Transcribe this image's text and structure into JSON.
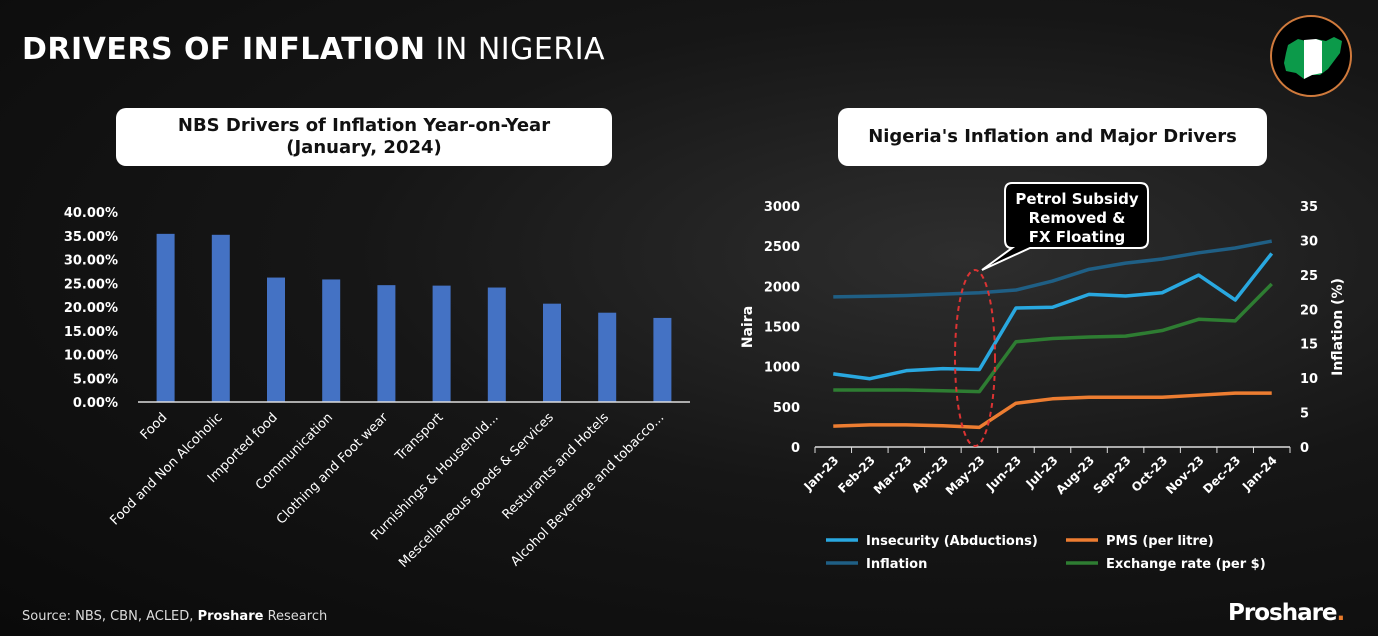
{
  "header": {
    "title_bold": "DRIVERS OF INFLATION",
    "title_rest": "IN NIGERIA"
  },
  "colors": {
    "bar": "#4472c4",
    "insecurity": "#29a8e0",
    "inflation": "#1f5f85",
    "pms": "#ed7d31",
    "exchange": "#2e7d32",
    "accent": "#d07a3c"
  },
  "footer": {
    "source_prefix": "Source: NBS, CBN, ACLED,",
    "source_brand": "Proshare",
    "source_suffix": "Research",
    "brand": "Proshare",
    "brand_dot": "."
  },
  "chart_data": [
    {
      "type": "bar",
      "title": "NBS Drivers of Inflation Year-on-Year",
      "subtitle": "(January, 2024)",
      "categories": [
        "Food",
        "Food and Non Alcoholic",
        "Imported food",
        "Communication",
        "Clothing and Foot wear",
        "Transport",
        "Furnishings & Household...",
        "Mescellaneous goods & Services",
        "Resturants and Hotels",
        "Alcohol Beverage and tobacco..."
      ],
      "values": [
        35.4,
        35.2,
        26.2,
        25.8,
        24.6,
        24.5,
        24.1,
        20.7,
        18.8,
        17.7
      ],
      "ylim": [
        0,
        40
      ],
      "yticks": [
        "0.00%",
        "5.00%",
        "10.00%",
        "15.00%",
        "20.00%",
        "25.00%",
        "30.00%",
        "35.00%",
        "40.00%"
      ],
      "xlabel": "",
      "ylabel": ""
    },
    {
      "type": "line",
      "title": "Nigeria's Inflation and Major Drivers",
      "categories": [
        "Jan-23",
        "Feb-23",
        "Mar-23",
        "Apr-23",
        "May-23",
        "Jun-23",
        "Jul-23",
        "Aug-23",
        "Sep-23",
        "Oct-23",
        "Nov-23",
        "Dec-23",
        "Jan-24"
      ],
      "ylabel": "Naira",
      "y2label": "Inflation (%)",
      "ylim": [
        0,
        3000
      ],
      "y2lim": [
        0,
        35
      ],
      "yticks": [
        "0",
        "500",
        "1000",
        "1500",
        "2000",
        "2500",
        "3000"
      ],
      "y2ticks": [
        "0",
        "5",
        "10",
        "15",
        "20",
        "25",
        "30",
        "35"
      ],
      "annotation": [
        "Petrol Subsidy",
        "Removed &",
        "FX Floating"
      ],
      "series": [
        {
          "name": "Insecurity (Abductions)",
          "axis": "left",
          "color": "#29a8e0",
          "values": [
            910,
            850,
            950,
            975,
            965,
            1730,
            1740,
            1900,
            1880,
            1920,
            2140,
            1830,
            2410
          ]
        },
        {
          "name": "PMS (per litre)",
          "axis": "left",
          "color": "#ed7d31",
          "values": [
            260,
            275,
            275,
            265,
            245,
            545,
            600,
            620,
            620,
            620,
            645,
            670,
            670
          ]
        },
        {
          "name": "Inflation",
          "axis": "right",
          "color": "#1f5f85",
          "values": [
            21.8,
            21.9,
            22.0,
            22.2,
            22.4,
            22.8,
            24.1,
            25.8,
            26.7,
            27.3,
            28.2,
            28.9,
            29.9
          ]
        },
        {
          "name": "Exchange rate (per $)",
          "axis": "left",
          "color": "#2e7d32",
          "values": [
            710,
            710,
            710,
            700,
            690,
            1310,
            1350,
            1370,
            1380,
            1450,
            1590,
            1570,
            2030
          ]
        }
      ]
    }
  ]
}
